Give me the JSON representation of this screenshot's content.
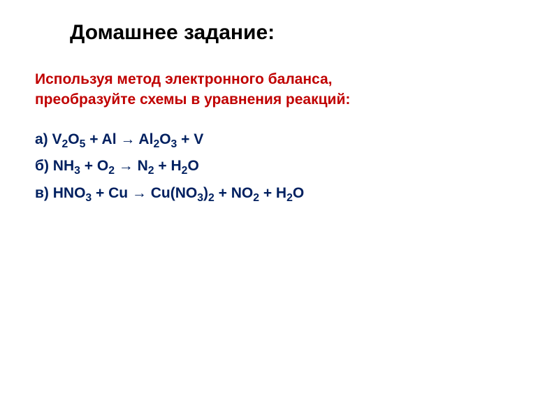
{
  "title": "Домашнее задание:",
  "instruction_line1": "Используя метод  электронного  баланса,",
  "instruction_line2": "преобразуйте схемы  в уравнения  реакций:",
  "eq_a": {
    "label": "а) V",
    "s1": "2",
    "p2": "O",
    "s2": "5",
    "p3": "   +   Al   →   Al",
    "s3": "2",
    "p4": "O",
    "s4": "3",
    "p5": "   +    V"
  },
  "eq_b": {
    "label": "б) NH",
    "s1": "3",
    "p2": "   +   O",
    "s2": "2",
    "p3": "   →   N",
    "s3": "2",
    "p4": "   +   H",
    "s4": "2",
    "p5": "O"
  },
  "eq_c": {
    "label": "в) HNO",
    "s1": "3",
    "p2": "   +   Cu    →   Cu(NO",
    "s2": "3",
    "p3": ")",
    "s3": "2",
    "p4": "   +   NO",
    "s4": "2",
    "p5": "   +   H",
    "s5": "2",
    "p6": "O"
  },
  "colors": {
    "title": "#000000",
    "instruction": "#c00000",
    "equation": "#002060",
    "background": "#ffffff"
  },
  "fonts": {
    "title_size": 30,
    "body_size": 21,
    "weight": "bold",
    "family": "Arial"
  }
}
